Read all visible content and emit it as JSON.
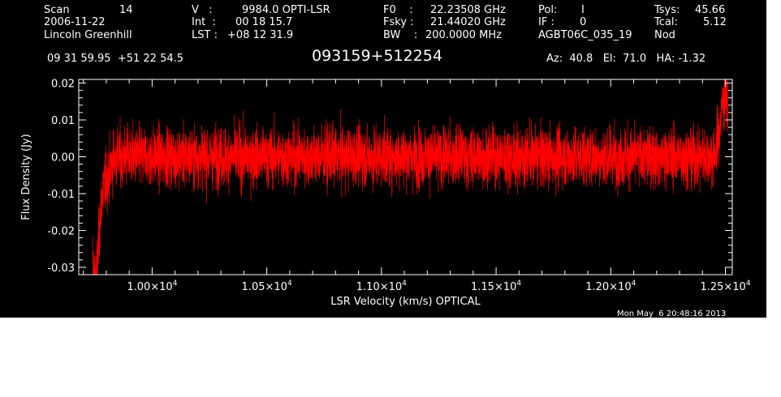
{
  "header": {
    "scan_label": "Scan",
    "scan_value": "14",
    "date": "2006-11-22",
    "observer": "Lincoln Greenhill",
    "v_label": "V   :",
    "v_value": "9984.0 OPTI-LSR",
    "int_label": "Int  :",
    "int_value": "00 18 15.7",
    "lst_label": "LST :",
    "lst_value": "+08 12 31.9",
    "f0_label": "F0    :",
    "f0_value": "22.23508 GHz",
    "fsky_label": "Fsky :",
    "fsky_value": "21.44020 GHz",
    "bw_label": "BW    :",
    "bw_value": "200.0000 MHz",
    "pol_label": "Pol:",
    "pol_value": "I",
    "if_label": "IF :",
    "if_value": "0",
    "project": "AGBT06C_035_19",
    "tsys_label": "Tsys:",
    "tsys_value": "45.66",
    "tcal_label": "Tcal:",
    "tcal_value": "5.12",
    "mode": "Nod",
    "coords": "09 31 59.95  +51 22 54.5",
    "source": "093159+512254",
    "azelha": "Az:  40.8   El:  71.0   HA: -1.32"
  },
  "footer": {
    "timestamp": "Mon May  6 20:48:16 2013"
  },
  "colors": {
    "background": "#000000",
    "axes": "#ffffff",
    "trace": "#ff0000"
  },
  "chart_data": {
    "type": "line",
    "title": "093159+512254",
    "xlabel": "LSR Velocity (km/s) OPTICAL",
    "ylabel": "Flux Density (Jy)",
    "xlim": [
      9680,
      12530
    ],
    "ylim": [
      -0.032,
      0.021
    ],
    "x_ticks": [
      10000,
      10500,
      11000,
      11500,
      12000,
      12500
    ],
    "x_tick_labels": [
      {
        "mant": "1.00×10",
        "exp": "4"
      },
      {
        "mant": "1.05×10",
        "exp": "4"
      },
      {
        "mant": "1.10×10",
        "exp": "4"
      },
      {
        "mant": "1.15×10",
        "exp": "4"
      },
      {
        "mant": "1.20×10",
        "exp": "4"
      },
      {
        "mant": "1.25×10",
        "exp": "4"
      }
    ],
    "y_ticks": [
      0.02,
      0.01,
      0.0,
      -0.01,
      -0.02,
      -0.03
    ],
    "y_tick_labels": [
      "0.02",
      "0.01",
      "0.00",
      "-0.01",
      "-0.02",
      "-0.03"
    ],
    "grid": false,
    "series": [
      {
        "x_start": 9740,
        "x_end": 12510,
        "x_step": 0.5,
        "noise_rms": 0.004,
        "mean": 0.0,
        "edge_features": [
          {
            "x": 9745,
            "y": -0.021
          },
          {
            "x": 9760,
            "y": -0.016
          },
          {
            "x": 9800,
            "y": -0.006
          },
          {
            "x": 12480,
            "y": 0.004
          },
          {
            "x": 12500,
            "y": 0.015
          }
        ]
      }
    ]
  }
}
